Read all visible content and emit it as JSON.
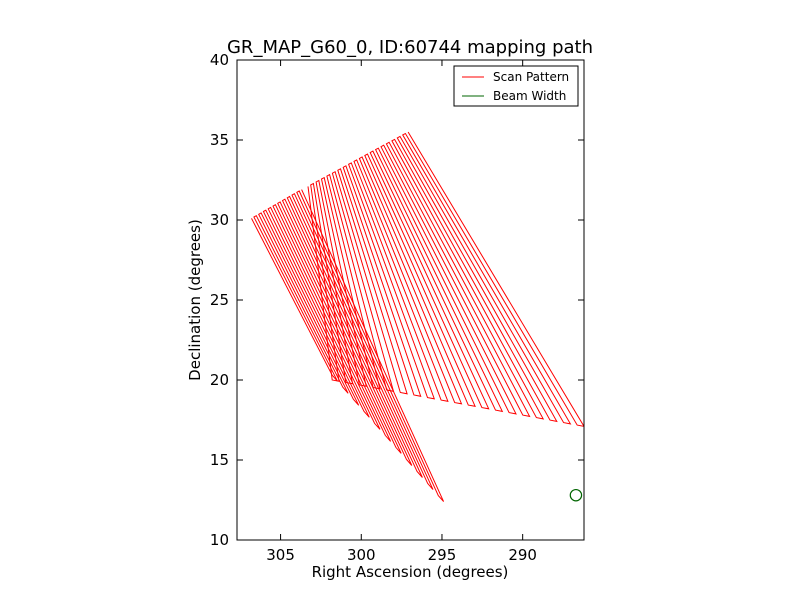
{
  "chart_data": {
    "type": "line",
    "title": "GR_MAP_G60_0, ID:60744 mapping path",
    "xlabel": "Right Ascension (degrees)",
    "ylabel": "Declination (degrees)",
    "xlim": [
      307.7,
      286.2
    ],
    "ylim": [
      10,
      40
    ],
    "x_inverted": true,
    "xticks": [
      305,
      300,
      295,
      290
    ],
    "xtick_labels": [
      "305",
      "300",
      "295",
      "290"
    ],
    "yticks": [
      10,
      15,
      20,
      25,
      30,
      35,
      40
    ],
    "ytick_labels": [
      "10",
      "15",
      "20",
      "25",
      "30",
      "35",
      "40"
    ],
    "grid": false,
    "legend": {
      "position": "top-right",
      "entries": [
        "Scan Pattern",
        "Beam Width"
      ]
    },
    "colors": {
      "scan": "#ff0000",
      "beam": "#006400"
    },
    "series": [
      {
        "name": "Scan Pattern",
        "style": "zigzag",
        "segments": [
          {
            "n_legs": 22,
            "top_start": [
              306.8,
              30.1
            ],
            "top_end": [
              303.7,
              31.9
            ],
            "bottom_start": [
              301.8,
              20.3
            ],
            "bottom_end": [
              294.9,
              12.4
            ]
          },
          {
            "n_legs": 38,
            "top_start": [
              303.3,
              32.1
            ],
            "top_end": [
              297.1,
              35.5
            ],
            "bottom_start": [
              301.8,
              20.0
            ],
            "bottom_end": [
              286.2,
              17.1
            ]
          }
        ]
      },
      {
        "name": "Beam Width",
        "style": "circle",
        "center": [
          286.7,
          12.8
        ],
        "radius_deg": 0.35
      }
    ]
  }
}
